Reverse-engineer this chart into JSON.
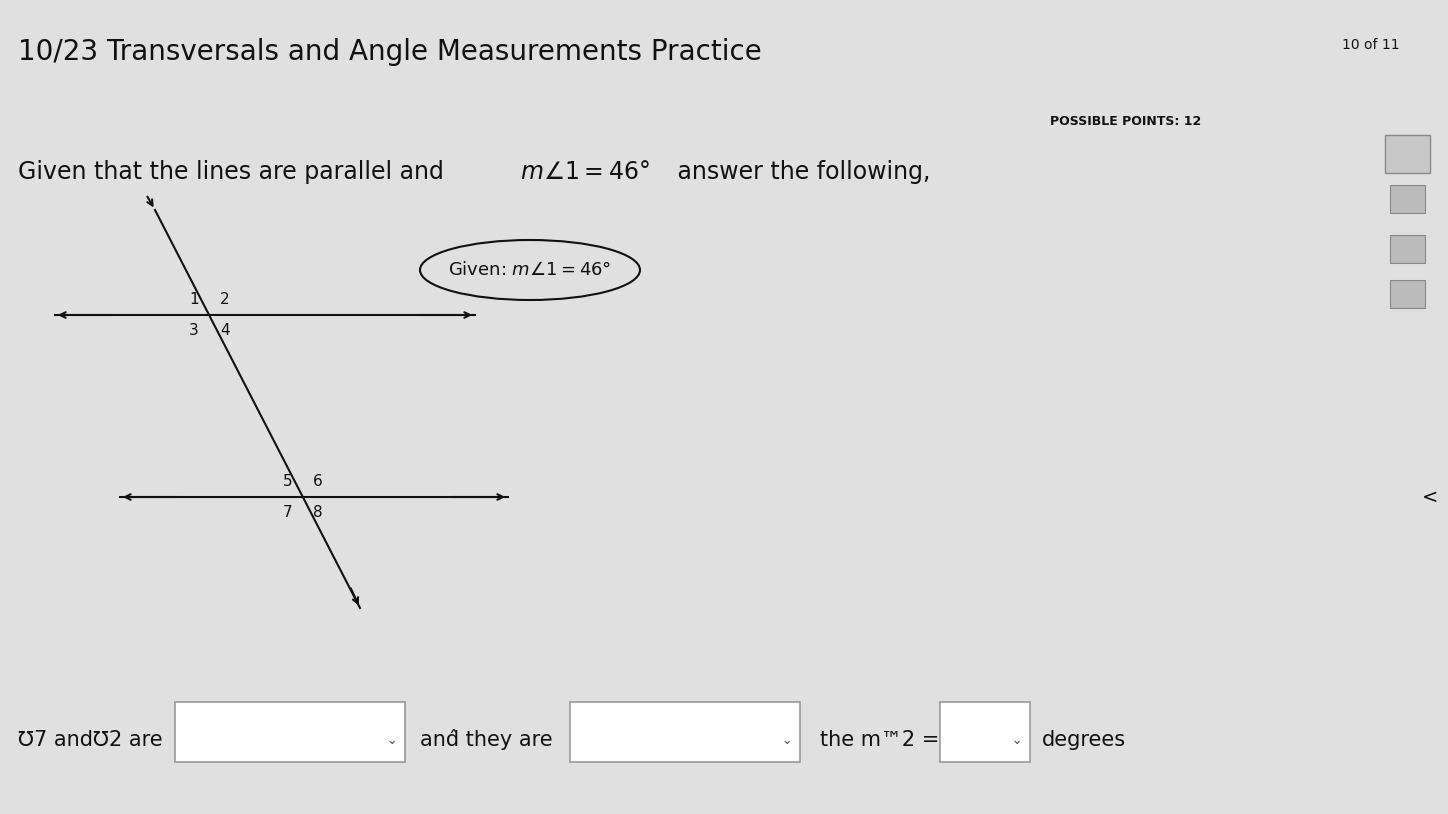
{
  "title": "10/23 Transversals and Angle Measurements Practice",
  "top_right_text": "10 of 11",
  "possible_points": "POSSIBLE POINTS: 12",
  "bg_color": "#e0e0e0",
  "line_color": "#111111",
  "text_color": "#111111",
  "font_size_title": 20,
  "font_size_problem": 17,
  "font_size_given": 13,
  "font_size_angles": 11,
  "font_size_bottom": 15,
  "font_size_small": 10,
  "given_oval_text": "Given: m™1 = 46°",
  "bottom_text_prefix": "℧7 and℧2 are",
  "bottom_text_mid": "and they are",
  "bottom_text_suffix": "the m℧2 =",
  "bottom_text_end": "degrees"
}
